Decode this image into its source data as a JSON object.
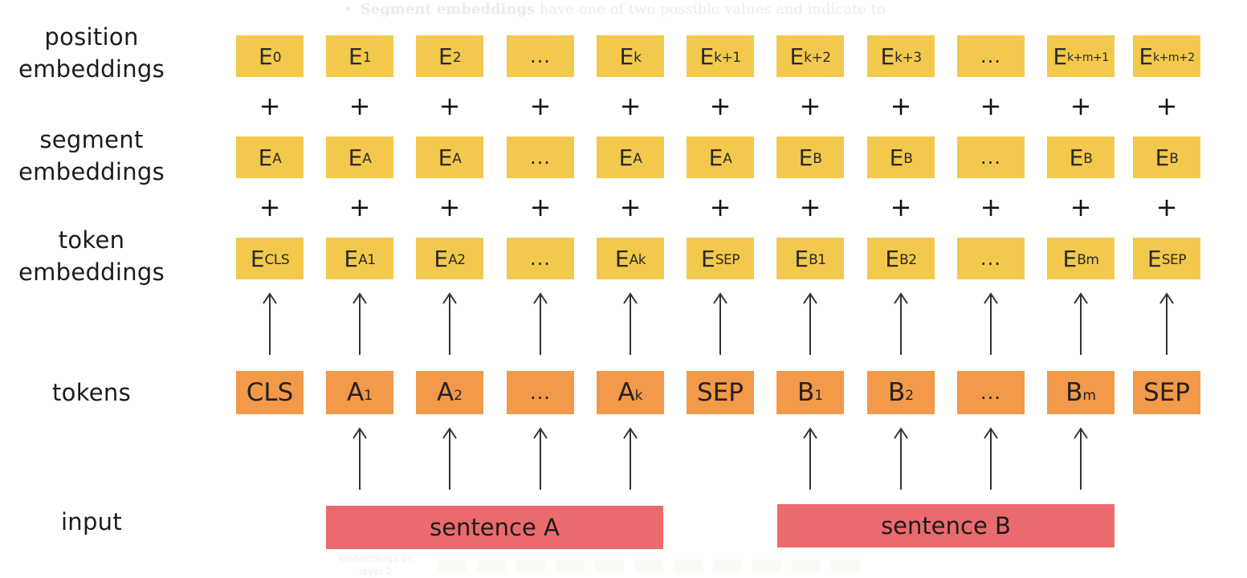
{
  "ghost": {
    "bullet_bold": "Segment embeddings",
    "bullet_rest": " have one of two possible values and indicate to",
    "bottom_label": "embeddings on layer 2"
  },
  "labels": {
    "position": [
      "position",
      "embeddings"
    ],
    "segment": [
      "segment",
      "embeddings"
    ],
    "token": [
      "token",
      "embeddings"
    ],
    "tokens": "tokens",
    "input": "input"
  },
  "plus_sign": "+",
  "position_row": [
    {
      "main": "E",
      "sub": "0"
    },
    {
      "main": "E",
      "sub": "1"
    },
    {
      "main": "E",
      "sub": "2"
    },
    {
      "main": "...",
      "sub": ""
    },
    {
      "main": "E",
      "sub": "k"
    },
    {
      "main": "E",
      "sub": "k+1"
    },
    {
      "main": "E",
      "sub": "k+2"
    },
    {
      "main": "E",
      "sub": "k+3"
    },
    {
      "main": "...",
      "sub": ""
    },
    {
      "main": "E",
      "sub": "k+m+1"
    },
    {
      "main": "E",
      "sub": "k+m+2"
    }
  ],
  "segment_row": [
    {
      "main": "E",
      "sub": "A"
    },
    {
      "main": "E",
      "sub": "A"
    },
    {
      "main": "E",
      "sub": "A"
    },
    {
      "main": "...",
      "sub": ""
    },
    {
      "main": "E",
      "sub": "A"
    },
    {
      "main": "E",
      "sub": "A"
    },
    {
      "main": "E",
      "sub": "B"
    },
    {
      "main": "E",
      "sub": "B"
    },
    {
      "main": "...",
      "sub": ""
    },
    {
      "main": "E",
      "sub": "B"
    },
    {
      "main": "E",
      "sub": "B"
    }
  ],
  "token_emb_row": [
    {
      "main": "E",
      "sub": "CLS"
    },
    {
      "main": "E",
      "sub": "A1"
    },
    {
      "main": "E",
      "sub": "A2"
    },
    {
      "main": "...",
      "sub": ""
    },
    {
      "main": "E",
      "sub": "Ak"
    },
    {
      "main": "E",
      "sub": "SEP"
    },
    {
      "main": "E",
      "sub": "B1"
    },
    {
      "main": "E",
      "sub": "B2"
    },
    {
      "main": "...",
      "sub": ""
    },
    {
      "main": "E",
      "sub": "Bm"
    },
    {
      "main": "E",
      "sub": "SEP"
    }
  ],
  "tokens_row": [
    {
      "main": "CLS",
      "sub": ""
    },
    {
      "main": "A",
      "sub": "1"
    },
    {
      "main": "A",
      "sub": "2"
    },
    {
      "main": "...",
      "sub": ""
    },
    {
      "main": "A",
      "sub": "k"
    },
    {
      "main": "SEP",
      "sub": ""
    },
    {
      "main": "B",
      "sub": "1"
    },
    {
      "main": "B",
      "sub": "2"
    },
    {
      "main": "...",
      "sub": ""
    },
    {
      "main": "B",
      "sub": "m"
    },
    {
      "main": "SEP",
      "sub": ""
    }
  ],
  "input_arrows": [
    false,
    true,
    true,
    true,
    true,
    false,
    true,
    true,
    true,
    true,
    false
  ],
  "sentences": {
    "a": "sentence A",
    "b": "sentence B"
  },
  "colors": {
    "embedding": "#f2c94c",
    "token": "#f2994a",
    "sentence": "#eb6a6d",
    "text": "#1b1b1b"
  }
}
